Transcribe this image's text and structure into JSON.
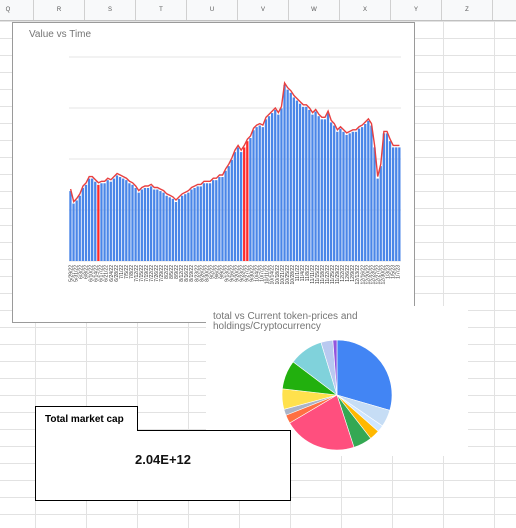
{
  "columns": [
    "Q",
    "R",
    "S",
    "T",
    "U",
    "V",
    "W",
    "X",
    "Y",
    "Z"
  ],
  "line_chart": {
    "title": "Value vs Time",
    "chart_data": {
      "type": "bar",
      "title": "Value vs Time",
      "xlabel": "",
      "ylabel": "",
      "x_tick_labels": [
        "5/29/22",
        "5/31/22",
        "6/3/22",
        "6/8/22",
        "6/10/22",
        "6/14/22",
        "6/17/22",
        "6/21/22",
        "6/24/22",
        "6/28/22",
        "7/1/22",
        "7/5/22",
        "7/8/22",
        "7/12/22",
        "7/15/22",
        "7/19/22",
        "7/22/22",
        "7/26/22",
        "7/29/22",
        "8/2/22",
        "8/5/22",
        "8/9/22",
        "8/12/22",
        "8/16/22",
        "8/19/22",
        "8/23/22",
        "8/26/22",
        "8/30/22",
        "9/2/22",
        "9/6/22",
        "9/9/22",
        "9/13/22",
        "9/16/22",
        "9/20/22",
        "9/23/22",
        "9/27/22",
        "9/30/22",
        "10/4/22",
        "10/7/22",
        "10/11/22",
        "10/14/22",
        "10/18/22",
        "10/21/22",
        "10/25/22",
        "10/28/22",
        "11/1/22",
        "11/4/22",
        "11/8/22",
        "11/11/22",
        "11/15/22",
        "11/18/22",
        "11/22/22",
        "11/25/22",
        "11/29/22",
        "12/2/22",
        "12/6/22",
        "12/9/22",
        "12/13/22",
        "12/16/22",
        "12/20/22",
        "12/23/22",
        "12/27/22",
        "12/30/22",
        "1/3/23",
        "1/5/23",
        "1/7/23"
      ],
      "values": [
        0.32,
        0.24,
        0.26,
        0.29,
        0.34,
        0.36,
        0.4,
        0.4,
        0.38,
        0.36,
        0.37,
        0.37,
        0.39,
        0.38,
        0.4,
        0.42,
        0.41,
        0.4,
        0.39,
        0.37,
        0.36,
        0.34,
        0.31,
        0.33,
        0.34,
        0.34,
        0.35,
        0.33,
        0.33,
        0.32,
        0.31,
        0.29,
        0.28,
        0.27,
        0.25,
        0.27,
        0.29,
        0.3,
        0.31,
        0.33,
        0.34,
        0.35,
        0.35,
        0.37,
        0.37,
        0.37,
        0.39,
        0.39,
        0.41,
        0.41,
        0.45,
        0.48,
        0.52,
        0.57,
        0.6,
        0.57,
        0.6,
        0.64,
        0.66,
        0.71,
        0.73,
        0.74,
        0.73,
        0.78,
        0.8,
        0.82,
        0.84,
        0.81,
        0.85,
        1.0,
        0.97,
        0.95,
        0.92,
        0.9,
        0.88,
        0.86,
        0.86,
        0.84,
        0.81,
        0.83,
        0.8,
        0.78,
        0.78,
        0.82,
        0.76,
        0.74,
        0.7,
        0.72,
        0.7,
        0.68,
        0.69,
        0.7,
        0.7,
        0.72,
        0.73,
        0.75,
        0.77,
        0.74,
        0.6,
        0.4,
        0.48,
        0.69,
        0.69,
        0.64,
        0.6,
        0.6,
        0.6
      ],
      "highlight_indices": [
        9,
        56,
        57
      ],
      "colors": {
        "bar": "#4a86e8",
        "highlight": "#ff2a2a",
        "line": "#e84040"
      }
    }
  },
  "pie_chart": {
    "title_line1": "total vs Current token-prices and",
    "title_line2": "holdings/Cryptocurrency",
    "chart_data": {
      "type": "pie",
      "slices": [
        {
          "value": 0.295,
          "color": "#4285f4"
        },
        {
          "value": 0.05,
          "color": "#c6ddf5"
        },
        {
          "value": 0.02,
          "color": "#cfe6ff"
        },
        {
          "value": 0.03,
          "color": "#ffb800"
        },
        {
          "value": 0.055,
          "color": "#34a853"
        },
        {
          "value": 0.215,
          "color": "#ff4f7e"
        },
        {
          "value": 0.025,
          "color": "#ff7043"
        },
        {
          "value": 0.018,
          "color": "#aab4c8"
        },
        {
          "value": 0.06,
          "color": "#ffe14d"
        },
        {
          "value": 0.085,
          "color": "#22b00e"
        },
        {
          "value": 0.1,
          "color": "#80d2db"
        },
        {
          "value": 0.035,
          "color": "#b9c9f0"
        },
        {
          "value": 0.012,
          "color": "#9254de"
        }
      ]
    }
  },
  "market_cap": {
    "label": "Total market cap",
    "value": "2.04E+12"
  }
}
